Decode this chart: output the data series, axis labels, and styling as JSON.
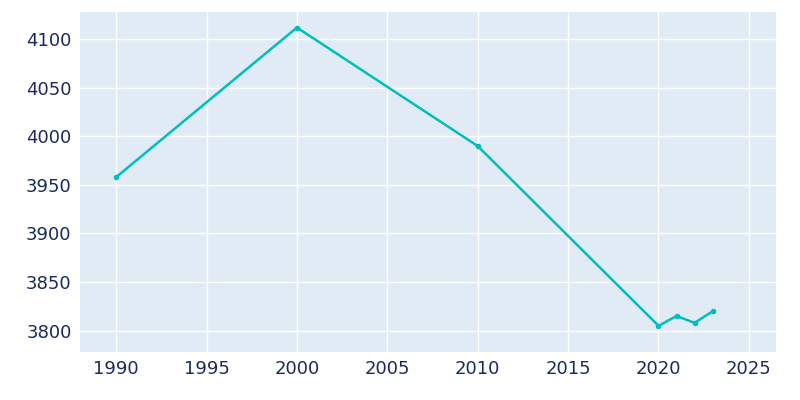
{
  "years": [
    1990,
    2000,
    2010,
    2020,
    2021,
    2022,
    2023
  ],
  "population": [
    3958,
    4112,
    3990,
    3805,
    3815,
    3808,
    3820
  ],
  "line_color": "#00BEBE",
  "plot_bg_color": "#E1EBF5",
  "fig_bg_color": "#FFFFFF",
  "grid_color": "#FFFFFF",
  "text_color": "#1a2a5e",
  "xlim": [
    1988,
    2026.5
  ],
  "ylim": [
    3778,
    4128
  ],
  "xticks": [
    1990,
    1995,
    2000,
    2005,
    2010,
    2015,
    2020,
    2025
  ],
  "yticks": [
    3800,
    3850,
    3900,
    3950,
    4000,
    4050,
    4100
  ],
  "linewidth": 1.8,
  "tick_fontsize": 13
}
